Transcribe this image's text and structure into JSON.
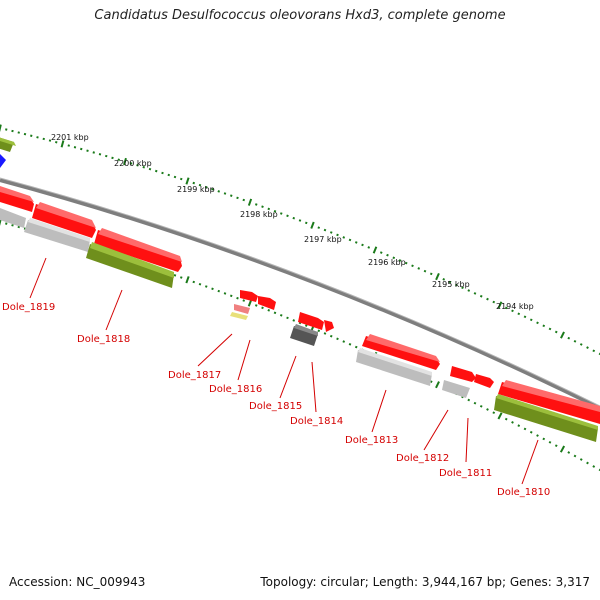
{
  "title": "Candidatus Desulfococcus oleovorans Hxd3, complete genome",
  "accession": "Accession: NC_009943",
  "topology_info": "Topology: circular; Length: 3,944,167 bp; Genes: 3,317",
  "kbp_labels": [
    "2201 kbp",
    "2200 kbp",
    "2199 kbp",
    "2198 kbp",
    "2197 kbp",
    "2196 kbp",
    "2195 kbp",
    "2194 kbp"
  ],
  "gene_labels": [
    "Dole_1819",
    "Dole_1818",
    "Dole_1817",
    "Dole_1816",
    "Dole_1815",
    "Dole_1814",
    "Dole_1813",
    "Dole_1812",
    "Dole_1811",
    "Dole_1810"
  ],
  "colors": {
    "backbone": "#8a8a8a",
    "gene_red": "#ff1010",
    "gene_olive": "#6f8f1c",
    "gene_grey": "#bdbdbd",
    "gene_dark": "#555555",
    "gene_blue": "#1a1aff",
    "tick_green": "#1a7a1a",
    "label_red": "#d40000"
  }
}
